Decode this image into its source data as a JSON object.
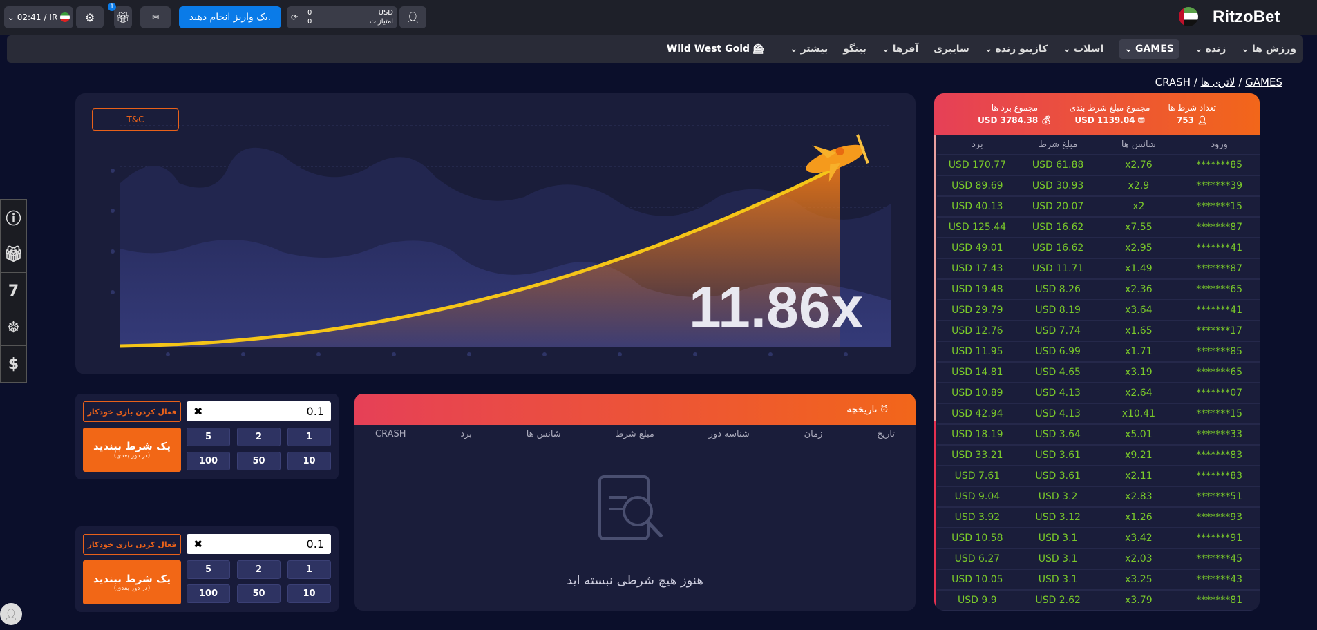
{
  "header": {
    "logo": "RitzoBet",
    "time": "02:41",
    "country": "IR",
    "gift_badge": "1",
    "deposit_label": "یک واریز انجام دهید.",
    "currency": "USD",
    "balance": "0",
    "points_label": "امتیازات",
    "points": "0"
  },
  "nav": {
    "items": [
      "ورزش ها",
      "زنده",
      "GAMES",
      "اسلات",
      "کازینو زنده",
      "سایبری",
      "آفرها",
      "بینگو",
      "بیشتر"
    ],
    "promo": "Wild West Gold"
  },
  "breadcrumb": {
    "home": "GAMES",
    "section": "لاتری ها",
    "current": "CRASH"
  },
  "game": {
    "tc_label": "T&C",
    "multiplier": "11.86x"
  },
  "side_icons": [
    "info-icon",
    "gift-icon",
    "seven-icon",
    "wheel-icon",
    "dollar-icon"
  ],
  "side_seven": "7",
  "bets": [
    {
      "auto_label": "فعال کردن بازی خودکار",
      "amount": "0.1",
      "quick": [
        "1",
        "2",
        "5",
        "10",
        "50",
        "100"
      ],
      "place_label": "یک شرط ببندید",
      "place_sub": "(در دور بعدی)"
    },
    {
      "auto_label": "فعال کردن بازی خودکار",
      "amount": "0.1",
      "quick": [
        "1",
        "2",
        "5",
        "10",
        "50",
        "100"
      ],
      "place_label": "یک شرط ببندید",
      "place_sub": "(در دور بعدی)"
    }
  ],
  "history": {
    "title": "تاریخچه",
    "columns": [
      "تاریخ",
      "زمان",
      "شناسه دور",
      "مبلغ شرط",
      "شانس ها",
      "برد",
      "CRASH"
    ],
    "empty": "هنوز هیچ شرطی نبسته اید"
  },
  "live": {
    "stats": [
      {
        "label": "تعداد شرط ها",
        "value": "753"
      },
      {
        "label": "مجموع مبلغ شرط بندی",
        "value": "USD 1139.04"
      },
      {
        "label": "مجموع برد ها",
        "value": "USD 3784.38"
      }
    ],
    "columns": [
      "ورود",
      "شانس ها",
      "مبلغ شرط",
      "برد"
    ],
    "rows": [
      [
        "85*******",
        "x2.76",
        "USD 61.88",
        "USD 170.77"
      ],
      [
        "39*******",
        "x2.9",
        "USD 30.93",
        "USD 89.69"
      ],
      [
        "15*******",
        "x2",
        "USD 20.07",
        "USD 40.13"
      ],
      [
        "87*******",
        "x7.55",
        "USD 16.62",
        "USD 125.44"
      ],
      [
        "41*******",
        "x2.95",
        "USD 16.62",
        "USD 49.01"
      ],
      [
        "87*******",
        "x1.49",
        "USD 11.71",
        "USD 17.43"
      ],
      [
        "65*******",
        "x2.36",
        "USD 8.26",
        "USD 19.48"
      ],
      [
        "41*******",
        "x3.64",
        "USD 8.19",
        "USD 29.79"
      ],
      [
        "17*******",
        "x1.65",
        "USD 7.74",
        "USD 12.76"
      ],
      [
        "85*******",
        "x1.71",
        "USD 6.99",
        "USD 11.95"
      ],
      [
        "65*******",
        "x3.19",
        "USD 4.65",
        "USD 14.81"
      ],
      [
        "07*******",
        "x2.64",
        "USD 4.13",
        "USD 10.89"
      ],
      [
        "15*******",
        "x10.41",
        "USD 4.13",
        "USD 42.94"
      ],
      [
        "33*******",
        "x5.01",
        "USD 3.64",
        "USD 18.19"
      ],
      [
        "83*******",
        "x9.21",
        "USD 3.61",
        "USD 33.21"
      ],
      [
        "83*******",
        "x2.11",
        "USD 3.61",
        "USD 7.61"
      ],
      [
        "51*******",
        "x2.83",
        "USD 3.2",
        "USD 9.04"
      ],
      [
        "93*******",
        "x1.26",
        "USD 3.12",
        "USD 3.92"
      ],
      [
        "91*******",
        "x3.42",
        "USD 3.1",
        "USD 10.58"
      ],
      [
        "45*******",
        "x2.03",
        "USD 3.1",
        "USD 6.27"
      ],
      [
        "43*******",
        "x3.25",
        "USD 3.1",
        "USD 10.05"
      ],
      [
        "81*******",
        "x3.79",
        "USD 2.62",
        "USD 9.9"
      ]
    ]
  },
  "colors": {
    "accent": "#f26716",
    "deposit": "#0a7be8",
    "win": "#7ac92a",
    "bg": "#0b0f2b"
  }
}
